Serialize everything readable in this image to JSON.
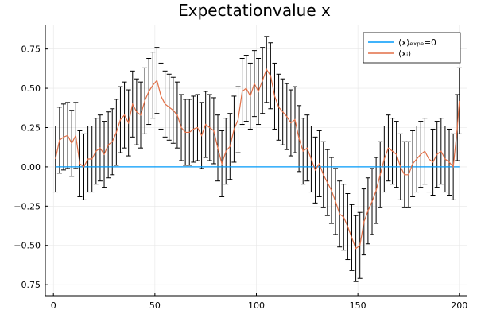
{
  "chart_data": {
    "type": "line",
    "title": "Expectationvalue x",
    "xlabel": "",
    "ylabel": "",
    "xlim": [
      -4,
      204
    ],
    "ylim": [
      -0.82,
      0.9
    ],
    "xticks": [
      0,
      50,
      100,
      150,
      200
    ],
    "yticks": [
      -0.75,
      -0.5,
      -0.25,
      0,
      0.25,
      0.5,
      0.75
    ],
    "xtick_labels": [
      "0",
      "50",
      "100",
      "150",
      "200"
    ],
    "ytick_labels": [
      "−0.75",
      "−0.50",
      "−0.25",
      "0.00",
      "0.25",
      "0.50",
      "0.75"
    ],
    "grid": true,
    "legend_position": "top-right",
    "series": [
      {
        "name": "⟨x⟩ₑₓₚₑ=0",
        "color": "#009AFA",
        "x": [
          1,
          200
        ],
        "y": [
          0,
          0
        ]
      },
      {
        "name": "⟨xᵢ⟩",
        "color": "#E26F46",
        "error_bar_color": "#000000",
        "error": 0.21,
        "x": [
          1,
          3,
          5,
          7,
          9,
          11,
          13,
          15,
          17,
          19,
          21,
          23,
          25,
          27,
          29,
          31,
          33,
          35,
          37,
          39,
          41,
          43,
          45,
          47,
          49,
          51,
          53,
          55,
          57,
          59,
          61,
          63,
          65,
          67,
          69,
          71,
          73,
          75,
          77,
          79,
          81,
          83,
          85,
          87,
          89,
          91,
          93,
          95,
          97,
          99,
          101,
          103,
          105,
          107,
          109,
          111,
          113,
          115,
          117,
          119,
          121,
          123,
          125,
          127,
          129,
          131,
          133,
          135,
          137,
          139,
          141,
          143,
          145,
          147,
          149,
          151,
          153,
          155,
          157,
          159,
          161,
          163,
          165,
          167,
          169,
          171,
          173,
          175,
          177,
          179,
          181,
          183,
          185,
          187,
          189,
          191,
          193,
          195,
          197,
          199,
          200
        ],
        "y": [
          0.05,
          0.17,
          0.19,
          0.2,
          0.15,
          0.2,
          0.02,
          0.0,
          0.05,
          0.05,
          0.1,
          0.12,
          0.08,
          0.14,
          0.16,
          0.22,
          0.3,
          0.33,
          0.28,
          0.4,
          0.35,
          0.33,
          0.42,
          0.48,
          0.52,
          0.55,
          0.45,
          0.4,
          0.38,
          0.36,
          0.33,
          0.25,
          0.22,
          0.22,
          0.24,
          0.25,
          0.2,
          0.27,
          0.25,
          0.23,
          0.12,
          0.02,
          0.1,
          0.13,
          0.24,
          0.3,
          0.48,
          0.5,
          0.45,
          0.53,
          0.48,
          0.55,
          0.62,
          0.58,
          0.45,
          0.38,
          0.35,
          0.32,
          0.28,
          0.3,
          0.18,
          0.1,
          0.12,
          0.05,
          -0.02,
          0.02,
          -0.05,
          -0.1,
          -0.15,
          -0.22,
          -0.3,
          -0.32,
          -0.38,
          -0.45,
          -0.52,
          -0.5,
          -0.35,
          -0.28,
          -0.22,
          -0.15,
          -0.05,
          0.05,
          0.12,
          0.1,
          0.08,
          0.0,
          -0.05,
          -0.05,
          0.02,
          0.05,
          0.08,
          0.1,
          0.05,
          0.03,
          0.08,
          0.1,
          0.05,
          0.03,
          0.0,
          0.25,
          0.42
        ]
      }
    ]
  }
}
